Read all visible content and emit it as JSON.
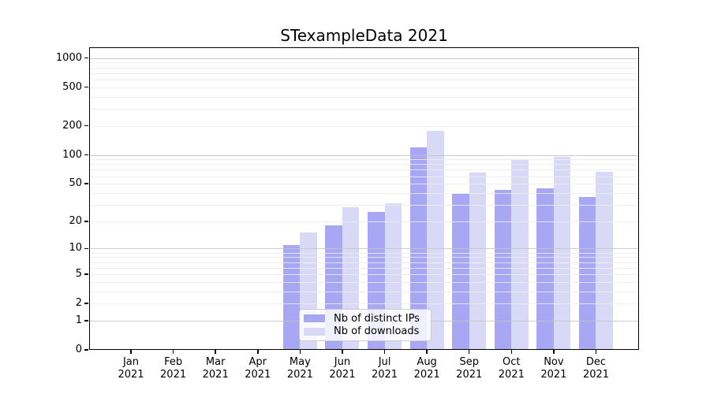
{
  "chart_data": {
    "type": "bar",
    "title": "STexampleData 2021",
    "categories": [
      "Jan 2021",
      "Feb 2021",
      "Mar 2021",
      "Apr 2021",
      "May 2021",
      "Jun 2021",
      "Jul 2021",
      "Aug 2021",
      "Sep 2021",
      "Oct 2021",
      "Nov 2021",
      "Dec 2021"
    ],
    "series": [
      {
        "name": "Nb of distinct IPs",
        "color": "#a7a7f4",
        "values": [
          0,
          0,
          0,
          0,
          11,
          18,
          25,
          119,
          39,
          43,
          45,
          36
        ]
      },
      {
        "name": "Nb of downloads",
        "color": "#d8d8f7",
        "values": [
          0,
          0,
          0,
          0,
          15,
          28,
          31,
          178,
          65,
          90,
          95,
          67
        ]
      }
    ],
    "y_ticks": [
      0,
      1,
      2,
      5,
      10,
      20,
      50,
      100,
      200,
      500,
      1000
    ],
    "y_scale": "log10(1+value)",
    "ylim": [
      0,
      1276
    ],
    "grid": "horizontal, major lines at powers of 10, light minor log lines",
    "legend_position": "lower center inside plot",
    "xlabel": "",
    "ylabel": ""
  },
  "colors": {
    "major_grid": "#c4c4c4",
    "minor_grid": "#ececec",
    "axis_frame": "#000000",
    "legend_border": "#cccccc"
  }
}
